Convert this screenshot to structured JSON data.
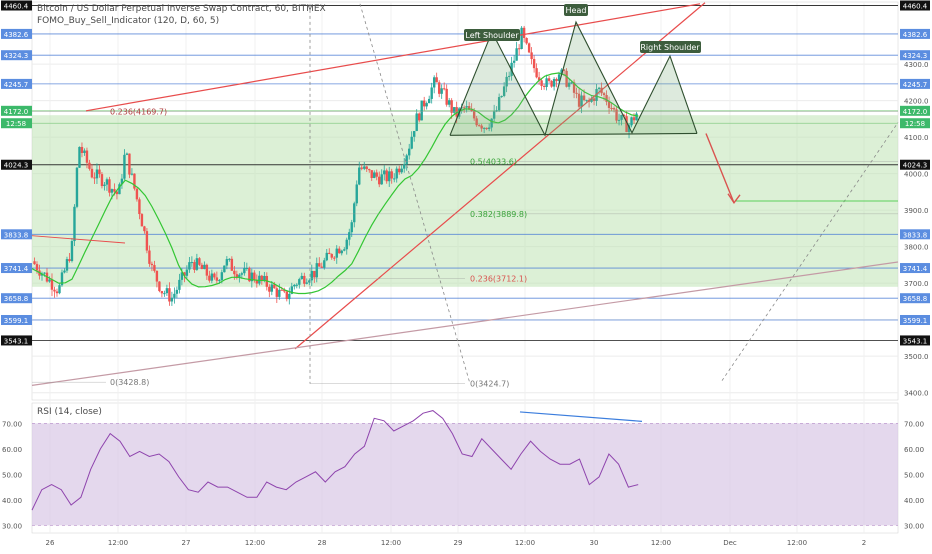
{
  "header": {
    "title": "Bitcoin / US Dollar Perpetual Inverse Swap Contract, 60, BITMEX",
    "indicator": "FOMO_Buy_Sell_Indicator (120, D, 60, 5)"
  },
  "rsi_panel": {
    "label": "RSI (14, close)"
  },
  "annotations": {
    "head": "Head",
    "left_shoulder": "Left Shoulder",
    "right_shoulder": "Right Shoulder"
  },
  "colors": {
    "candle_up": "#26a69a",
    "candle_down": "#ef5350",
    "trendline": "#e84c4c",
    "level_line": "#4f7fd6",
    "rsi_line": "#8e44ad",
    "rsi_band": "#d9c8e6",
    "fomo_band": "#bfe3b4",
    "moving_average": "#33c633",
    "pattern": "#2f4f2f"
  },
  "chart_data": [
    {
      "type": "candlestick",
      "ylim": [
        3380,
        4470
      ],
      "x_ticks": [
        "26",
        "12:00",
        "27",
        "12:00",
        "28",
        "12:00",
        "29",
        "12:00",
        "30",
        "12:00",
        "Dec",
        "12:00",
        "2"
      ],
      "y_ticks": [
        3400.0,
        3500.0,
        3600.0,
        3700.0,
        3800.0,
        3900.0,
        4000.0,
        4100.0,
        4200.0,
        4300.0
      ],
      "price_labels": [
        {
          "value": 4460.4,
          "label": "4460.4",
          "style": "dark"
        },
        {
          "value": 4382.6,
          "label": "4382.6",
          "style": "blue"
        },
        {
          "value": 4324.3,
          "label": "4324.3",
          "style": "blue"
        },
        {
          "value": 4245.7,
          "label": "4245.7",
          "style": "blue"
        },
        {
          "value": 4172.0,
          "label": "4172.0",
          "style": "green"
        },
        {
          "value": 4138.0,
          "label": "12:58",
          "style": "green"
        },
        {
          "value": 4024.3,
          "label": "4024.3",
          "style": "dark"
        },
        {
          "value": 3833.8,
          "label": "3833.8",
          "style": "blue"
        },
        {
          "value": 3741.4,
          "label": "3741.4",
          "style": "blue"
        },
        {
          "value": 3658.8,
          "label": "3658.8",
          "style": "blue"
        },
        {
          "value": 3599.1,
          "label": "3599.1",
          "style": "blue"
        },
        {
          "value": 3543.1,
          "label": "3543.1",
          "style": "dark"
        }
      ],
      "fib_labels": [
        {
          "text": "0.236(4169.7)",
          "value": 4169.7,
          "color": "#b04040"
        },
        {
          "text": "0.5(4033.6)",
          "value": 4033.6,
          "color": "#3aa33a"
        },
        {
          "text": "0.382(3889.8)",
          "value": 3889.8,
          "color": "#3aa33a"
        },
        {
          "text": "0.236(3712.1)",
          "value": 3712.1,
          "color": "#d9534f"
        },
        {
          "text": "0(3428.8)",
          "value": 3428.8,
          "color": "#777777"
        },
        {
          "text": "0(3424.7)",
          "value": 3424.7,
          "color": "#777777"
        }
      ],
      "close_path": [
        [
          0,
          3760
        ],
        [
          4,
          3720
        ],
        [
          8,
          3680
        ],
        [
          12,
          3800
        ],
        [
          14,
          4080
        ],
        [
          18,
          4000
        ],
        [
          22,
          3980
        ],
        [
          26,
          3940
        ],
        [
          28,
          4060
        ],
        [
          31,
          3950
        ],
        [
          33,
          3870
        ],
        [
          36,
          3740
        ],
        [
          39,
          3680
        ],
        [
          42,
          3660
        ],
        [
          45,
          3710
        ],
        [
          48,
          3760
        ],
        [
          52,
          3730
        ],
        [
          55,
          3700
        ],
        [
          58,
          3760
        ],
        [
          62,
          3730
        ],
        [
          66,
          3720
        ],
        [
          70,
          3700
        ],
        [
          73,
          3680
        ],
        [
          76,
          3660
        ],
        [
          79,
          3700
        ],
        [
          82,
          3720
        ],
        [
          85,
          3730
        ],
        [
          88,
          3760
        ],
        [
          91,
          3790
        ],
        [
          94,
          3810
        ],
        [
          96,
          3860
        ],
        [
          98,
          4020
        ],
        [
          101,
          4000
        ],
        [
          104,
          3990
        ],
        [
          108,
          3990
        ],
        [
          111,
          4030
        ],
        [
          113,
          4070
        ],
        [
          115,
          4140
        ],
        [
          118,
          4200
        ],
        [
          121,
          4250
        ],
        [
          124,
          4210
        ],
        [
          127,
          4160
        ],
        [
          130,
          4180
        ],
        [
          133,
          4150
        ],
        [
          136,
          4130
        ],
        [
          139,
          4160
        ],
        [
          142,
          4240
        ],
        [
          145,
          4320
        ],
        [
          147,
          4380
        ],
        [
          150,
          4300
        ],
        [
          153,
          4260
        ],
        [
          155,
          4240
        ],
        [
          158,
          4280
        ],
        [
          161,
          4250
        ],
        [
          164,
          4200
        ],
        [
          167,
          4190
        ],
        [
          170,
          4230
        ],
        [
          173,
          4200
        ],
        [
          176,
          4150
        ],
        [
          179,
          4130
        ],
        [
          182,
          4172
        ]
      ],
      "x_domain": [
        0,
        260
      ]
    },
    {
      "type": "line",
      "name": "RSI (14, close)",
      "ylim": [
        27,
        78
      ],
      "y_ticks": [
        30.0,
        40.0,
        50.0,
        60.0,
        70.0
      ],
      "band": [
        30,
        70
      ],
      "values": [
        36,
        44,
        46,
        44,
        38,
        41,
        52,
        60,
        66,
        63,
        57,
        59,
        57,
        58,
        55,
        49,
        44,
        43,
        47,
        45,
        45,
        43,
        41,
        41,
        47,
        45,
        44,
        47,
        49,
        51,
        47,
        51,
        53,
        58,
        61,
        72,
        71,
        67,
        69,
        71,
        74,
        75,
        72,
        66,
        58,
        57,
        64,
        60,
        56,
        52,
        58,
        63,
        59,
        56,
        54,
        54,
        56,
        46,
        49,
        58,
        54,
        45,
        46
      ]
    }
  ]
}
